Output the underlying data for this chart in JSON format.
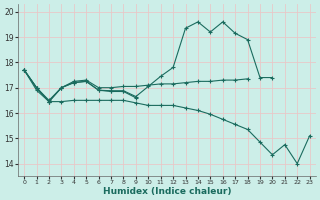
{
  "xlabel": "Humidex (Indice chaleur)",
  "bg_color": "#cceee8",
  "grid_color": "#e8c8c8",
  "line_color": "#1a6b5e",
  "xlim": [
    -0.5,
    23.5
  ],
  "ylim": [
    13.5,
    20.3
  ],
  "yticks": [
    14,
    15,
    16,
    17,
    18,
    19,
    20
  ],
  "xticks": [
    0,
    1,
    2,
    3,
    4,
    5,
    6,
    7,
    8,
    9,
    10,
    11,
    12,
    13,
    14,
    15,
    16,
    17,
    18,
    19,
    20,
    21,
    22,
    23
  ],
  "series": [
    {
      "x": [
        0,
        1,
        2,
        3,
        4,
        5,
        6,
        7,
        8,
        9,
        10,
        11,
        12,
        13,
        14,
        15,
        16,
        17,
        18
      ],
      "y": [
        17.7,
        17.0,
        16.5,
        17.0,
        17.25,
        17.3,
        17.0,
        17.0,
        17.05,
        17.05,
        17.1,
        17.15,
        17.15,
        17.2,
        17.25,
        17.25,
        17.3,
        17.3,
        17.35
      ]
    },
    {
      "x": [
        0,
        1,
        2,
        3,
        4,
        5,
        6,
        7,
        8,
        9,
        10,
        11,
        12,
        13,
        14,
        15,
        16,
        17,
        18,
        19,
        20
      ],
      "y": [
        17.7,
        17.0,
        16.45,
        17.0,
        17.2,
        17.25,
        16.9,
        16.88,
        16.88,
        16.65,
        17.05,
        17.45,
        17.8,
        19.35,
        19.6,
        19.2,
        19.6,
        19.15,
        18.9,
        17.4,
        17.4
      ]
    },
    {
      "x": [
        0,
        1,
        2,
        3,
        4,
        5,
        6,
        7,
        8,
        9
      ],
      "y": [
        17.7,
        17.0,
        16.45,
        17.0,
        17.2,
        17.25,
        16.9,
        16.85,
        16.85,
        16.6
      ]
    },
    {
      "x": [
        0,
        1,
        2,
        3,
        4,
        5,
        6,
        7,
        8,
        9,
        10,
        11,
        12,
        13,
        14,
        15,
        16,
        17,
        18,
        19,
        20,
        21,
        22,
        23
      ],
      "y": [
        17.7,
        16.9,
        16.45,
        16.45,
        16.5,
        16.5,
        16.5,
        16.5,
        16.5,
        16.4,
        16.3,
        16.3,
        16.3,
        16.2,
        16.1,
        15.95,
        15.75,
        15.55,
        15.35,
        14.85,
        14.35,
        14.75,
        14.0,
        15.1
      ]
    }
  ]
}
